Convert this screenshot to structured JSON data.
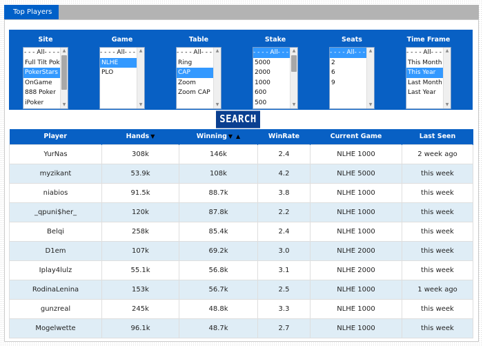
{
  "tab": {
    "label": "Top Players"
  },
  "filters": [
    {
      "key": "site",
      "label": "Site",
      "options": [
        "- - - All- - - -",
        "Full Tilt Poker",
        "PokerStars",
        "OnGame",
        "888 Poker",
        "iPoker"
      ],
      "selected": [
        2
      ],
      "centered": [
        0
      ],
      "scroll": true,
      "thumb": "long"
    },
    {
      "key": "game",
      "label": "Game",
      "options": [
        "- - - - All- - - -",
        "NLHE",
        "PLO"
      ],
      "selected": [
        1
      ],
      "centered": [
        0
      ],
      "scroll": true,
      "thumb": "none"
    },
    {
      "key": "table",
      "label": "Table",
      "options": [
        "- - - - All- - - -",
        "Ring",
        "CAP",
        "Zoom",
        "Zoom CAP"
      ],
      "selected": [
        2
      ],
      "centered": [
        0
      ],
      "scroll": true,
      "thumb": "none"
    },
    {
      "key": "stake",
      "label": "Stake",
      "options": [
        "- - - - All- - - -",
        "5000",
        "2000",
        "1000",
        "600",
        "500"
      ],
      "selected": [
        0
      ],
      "centered": [
        0
      ],
      "scroll": true,
      "thumb": "short"
    },
    {
      "key": "seats",
      "label": "Seats",
      "options": [
        "- - - - All- - - -",
        "2",
        "6",
        "9"
      ],
      "selected": [
        0
      ],
      "centered": [
        0
      ],
      "scroll": true,
      "thumb": "none"
    },
    {
      "key": "timeframe",
      "label": "Time Frame",
      "options": [
        "- - - - All- - - -",
        "This Month",
        "This Year",
        "Last Month",
        "Last Year"
      ],
      "selected": [
        2
      ],
      "centered": [
        0
      ],
      "scroll": true,
      "thumb": "none"
    }
  ],
  "search": {
    "label": "SEARCH"
  },
  "table": {
    "columns": [
      "Player",
      "Hands",
      "Winning",
      "WinRate",
      "Current Game",
      "Last Seen"
    ],
    "sort_down_glyph": "▼",
    "sort_up_glyph": "▲",
    "rows": [
      [
        "YurNas",
        "308k",
        "146k",
        "2.4",
        "NLHE 1000",
        "2 week ago"
      ],
      [
        "myzikant",
        "53.9k",
        "108k",
        "4.2",
        "NLHE 5000",
        "this week"
      ],
      [
        "niabios",
        "91.5k",
        "88.7k",
        "3.8",
        "NLHE 1000",
        "this week"
      ],
      [
        "_qpuni$her_",
        "120k",
        "87.8k",
        "2.2",
        "NLHE 1000",
        "this week"
      ],
      [
        "Belqi",
        "258k",
        "85.4k",
        "2.4",
        "NLHE 1000",
        "this week"
      ],
      [
        "D1em",
        "107k",
        "69.2k",
        "3.0",
        "NLHE 2000",
        "this week"
      ],
      [
        "Iplay4lulz",
        "55.1k",
        "56.8k",
        "3.1",
        "NLHE 2000",
        "this week"
      ],
      [
        "RodinaLenina",
        "153k",
        "56.7k",
        "2.5",
        "NLHE 1000",
        "1 week ago"
      ],
      [
        "gunzreal",
        "245k",
        "48.8k",
        "3.3",
        "NLHE 1000",
        "this week"
      ],
      [
        "Mogelwette",
        "96.1k",
        "48.7k",
        "2.7",
        "NLHE 1000",
        "this week"
      ]
    ]
  }
}
